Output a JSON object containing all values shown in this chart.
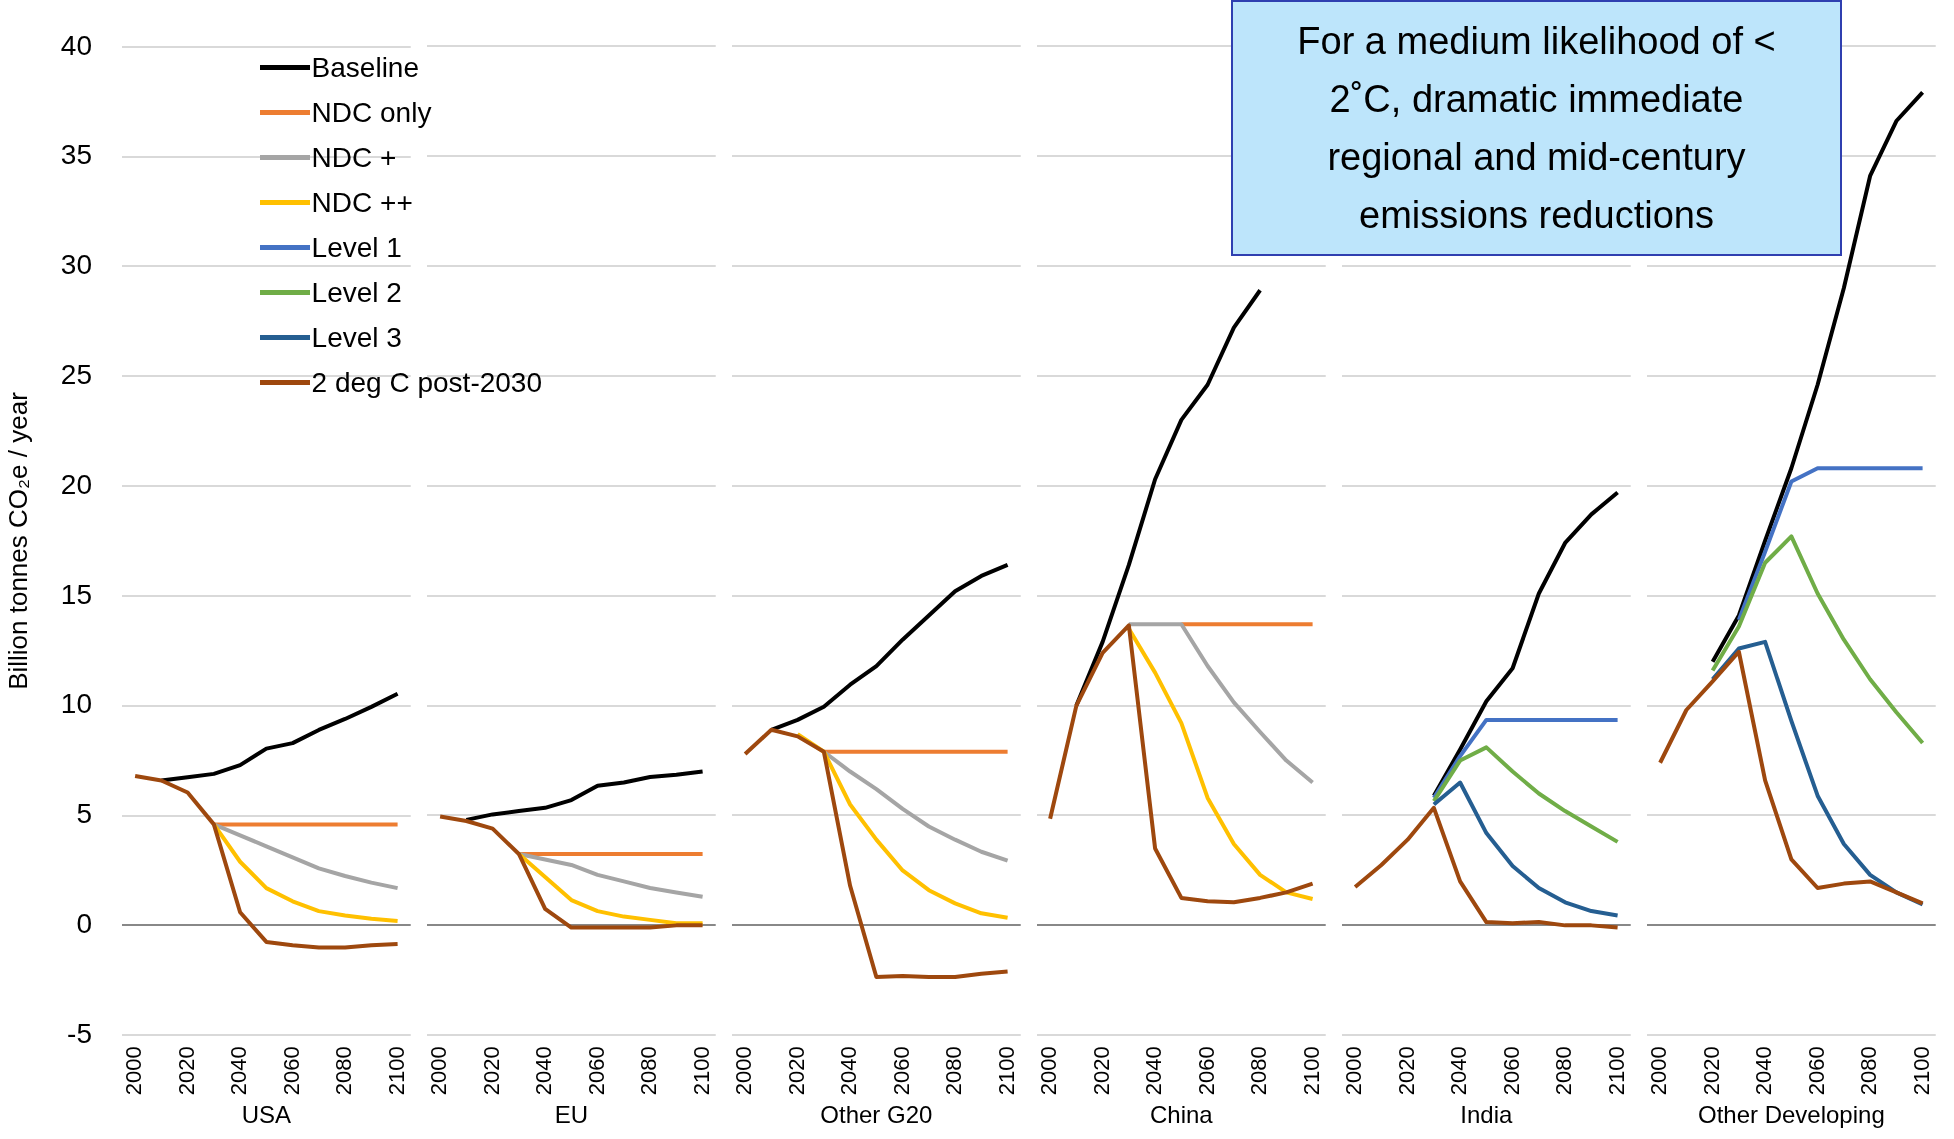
{
  "chart_data": [
    {
      "type": "line",
      "xlabel": "USA",
      "ylabel": "Billion tonnes CO₂e / year",
      "legend": "top right",
      "grid": "y",
      "ylim": [
        -5,
        40
      ],
      "yticks": [
        -5,
        0,
        5,
        10,
        15,
        20,
        25,
        30,
        35,
        40
      ],
      "categories": [
        "2000",
        null,
        "2020",
        null,
        "2040",
        null,
        "2060",
        null,
        "2080",
        null,
        "2100"
      ],
      "series": [
        {
          "name": "Baseline",
          "color": "#000000",
          "values": [
            null,
            6.6,
            6.75,
            6.9,
            7.3,
            8.05,
            8.3,
            8.9,
            9.4,
            9.95,
            10.55
          ]
        },
        {
          "name": "NDC only",
          "color": "#ed7d31",
          "values": [
            null,
            null,
            null,
            4.6,
            4.6,
            4.6,
            4.6,
            4.6,
            4.6,
            4.6,
            4.6
          ]
        },
        {
          "name": "NDC +",
          "color": "#a5a5a5",
          "values": [
            null,
            null,
            null,
            4.6,
            4.1,
            3.6,
            3.1,
            2.6,
            2.25,
            1.95,
            1.7
          ]
        },
        {
          "name": "NDC ++",
          "color": "#ffc000",
          "values": [
            null,
            null,
            null,
            4.6,
            2.9,
            1.7,
            1.1,
            0.65,
            0.45,
            0.3,
            0.2
          ]
        },
        {
          "name": "Level 1",
          "color": "#4472c4",
          "values": [
            null,
            null,
            null,
            null,
            null,
            null,
            null,
            null,
            null,
            null,
            null
          ]
        },
        {
          "name": "Level 2",
          "color": "#70ad47",
          "values": [
            null,
            null,
            null,
            null,
            null,
            null,
            null,
            null,
            null,
            null,
            null
          ]
        },
        {
          "name": "Level 3",
          "color": "#255e91",
          "values": [
            null,
            null,
            null,
            null,
            null,
            null,
            null,
            null,
            null,
            null,
            null
          ]
        },
        {
          "name": "2 deg C post-2030",
          "color": "#9e480e",
          "values": [
            6.8,
            6.6,
            6.05,
            4.6,
            0.6,
            -0.75,
            -0.9,
            -1.0,
            -1.0,
            -0.9,
            -0.85
          ]
        }
      ]
    },
    {
      "type": "line",
      "xlabel": "EU",
      "tick_labels": "x",
      "grid": "y",
      "ylim": [
        -5,
        40
      ],
      "yticks": [
        -5,
        0,
        5,
        10,
        15,
        20,
        25,
        30,
        35,
        40
      ],
      "categories": [
        "2000",
        null,
        "2020",
        null,
        "2040",
        null,
        "2060",
        null,
        "2080",
        null,
        "2100"
      ],
      "series": [
        {
          "color": "#000000",
          "values": [
            null,
            4.8,
            5.05,
            5.2,
            5.35,
            5.7,
            6.35,
            6.5,
            6.75,
            6.85,
            7.0
          ]
        },
        {
          "color": "#ed7d31",
          "values": [
            null,
            null,
            null,
            3.25,
            3.25,
            3.25,
            3.25,
            3.25,
            3.25,
            3.25,
            3.25
          ]
        },
        {
          "color": "#a5a5a5",
          "values": [
            null,
            null,
            null,
            3.25,
            3.0,
            2.75,
            2.3,
            2.0,
            1.7,
            1.5,
            1.3
          ]
        },
        {
          "color": "#ffc000",
          "values": [
            null,
            null,
            null,
            3.25,
            2.2,
            1.15,
            0.65,
            0.4,
            0.25,
            0.1,
            0.1
          ]
        },
        {
          "color": "#9e480e",
          "values": [
            4.95,
            4.75,
            4.4,
            3.25,
            0.75,
            -0.1,
            -0.1,
            -0.1,
            -0.1,
            0.0,
            0.0
          ]
        }
      ]
    },
    {
      "type": "line",
      "xlabel": "Other G20",
      "tick_labels": "x",
      "grid": "y",
      "ylim": [
        -5,
        40
      ],
      "yticks": [
        -5,
        0,
        5,
        10,
        15,
        20,
        25,
        30,
        35,
        40
      ],
      "categories": [
        "2000",
        null,
        "2020",
        null,
        "2040",
        null,
        "2060",
        null,
        "2080",
        null,
        "2100"
      ],
      "series": [
        {
          "color": "#000000",
          "values": [
            null,
            8.9,
            9.35,
            9.95,
            10.95,
            11.8,
            13.0,
            14.1,
            15.2,
            15.9,
            16.4
          ]
        },
        {
          "color": "#ed7d31",
          "values": [
            null,
            null,
            null,
            7.9,
            7.9,
            7.9,
            7.9,
            7.9,
            7.9,
            7.9,
            7.9
          ]
        },
        {
          "color": "#a5a5a5",
          "values": [
            null,
            null,
            null,
            7.9,
            7.0,
            6.2,
            5.3,
            4.5,
            3.9,
            3.35,
            2.95
          ]
        },
        {
          "color": "#ffc000",
          "values": [
            null,
            null,
            8.7,
            7.9,
            5.5,
            3.9,
            2.5,
            1.6,
            1.0,
            0.55,
            0.35
          ]
        },
        {
          "color": "#9e480e",
          "values": [
            7.8,
            8.9,
            8.6,
            7.9,
            1.8,
            -2.35,
            -2.3,
            -2.35,
            -2.35,
            -2.2,
            -2.1
          ]
        }
      ]
    },
    {
      "type": "line",
      "xlabel": "China",
      "tick_labels": "x",
      "grid": "y",
      "ylim": [
        -5,
        40
      ],
      "yticks": [
        -5,
        0,
        5,
        10,
        15,
        20,
        25,
        30,
        35,
        40
      ],
      "annotations": [
        "For a medium likelihood of < 2˚C, dramatic immediate regional and mid-century emissions reductions"
      ],
      "categories": [
        "2000",
        null,
        "2020",
        null,
        "2040",
        null,
        "2060",
        null,
        "2080",
        null,
        "2100"
      ],
      "series": [
        {
          "color": "#000000",
          "values": [
            null,
            10.0,
            12.9,
            16.4,
            20.3,
            23.0,
            24.6,
            27.2,
            28.9,
            null,
            null
          ]
        },
        {
          "color": "#ed7d31",
          "values": [
            null,
            null,
            null,
            null,
            null,
            13.7,
            13.7,
            13.7,
            13.7,
            13.7,
            13.7
          ]
        },
        {
          "color": "#a5a5a5",
          "values": [
            null,
            null,
            null,
            13.7,
            13.7,
            13.7,
            11.8,
            10.15,
            8.8,
            7.5,
            6.5
          ]
        },
        {
          "color": "#ffc000",
          "values": [
            null,
            null,
            null,
            13.5,
            11.5,
            9.2,
            5.8,
            3.7,
            2.3,
            1.5,
            1.2
          ]
        },
        {
          "color": "#9e480e",
          "values": [
            4.85,
            10.0,
            12.4,
            13.65,
            3.5,
            1.25,
            1.1,
            1.05,
            1.25,
            1.5,
            1.9
          ]
        }
      ]
    },
    {
      "type": "line",
      "xlabel": "India",
      "tick_labels": "x",
      "grid": "y",
      "ylim": [
        -5,
        40
      ],
      "yticks": [
        -5,
        0,
        5,
        10,
        15,
        20,
        25,
        30,
        35,
        40
      ],
      "categories": [
        "2000",
        null,
        "2020",
        null,
        "2040",
        null,
        "2060",
        null,
        "2080",
        null,
        "2100"
      ],
      "series": [
        {
          "color": "#000000",
          "values": [
            null,
            null,
            null,
            5.9,
            8.0,
            10.2,
            11.7,
            15.1,
            17.4,
            18.7,
            19.7
          ]
        },
        {
          "color": "#4472c4",
          "values": [
            null,
            null,
            null,
            5.8,
            7.7,
            9.35,
            9.35,
            9.35,
            9.35,
            9.35,
            9.35
          ]
        },
        {
          "color": "#70ad47",
          "values": [
            null,
            null,
            null,
            5.65,
            7.5,
            8.1,
            7.0,
            6.0,
            5.2,
            4.5,
            3.8
          ]
        },
        {
          "color": "#255e91",
          "values": [
            null,
            null,
            null,
            5.5,
            6.5,
            4.2,
            2.7,
            1.7,
            1.05,
            0.65,
            0.45
          ]
        },
        {
          "color": "#9e480e",
          "values": [
            1.75,
            2.75,
            3.9,
            5.35,
            2.0,
            0.15,
            0.1,
            0.15,
            0.0,
            0.0,
            -0.1
          ]
        }
      ]
    },
    {
      "type": "line",
      "xlabel": "Other Developing",
      "tick_labels": "x",
      "grid": "y",
      "ylim": [
        -5,
        40
      ],
      "yticks": [
        -5,
        0,
        5,
        10,
        15,
        20,
        25,
        30,
        35,
        40
      ],
      "categories": [
        "2000",
        null,
        "2020",
        null,
        "2040",
        null,
        "2060",
        null,
        "2080",
        null,
        "2100"
      ],
      "series": [
        {
          "color": "#000000",
          "values": [
            null,
            null,
            12.0,
            14.1,
            17.5,
            20.8,
            24.6,
            29.0,
            34.1,
            36.6,
            37.9
          ]
        },
        {
          "color": "#4472c4",
          "values": [
            null,
            null,
            null,
            13.9,
            17.0,
            20.2,
            20.8,
            20.8,
            20.8,
            20.8,
            20.8
          ]
        },
        {
          "color": "#70ad47",
          "values": [
            null,
            null,
            11.6,
            13.6,
            16.5,
            17.7,
            15.1,
            13.0,
            11.2,
            9.7,
            8.3
          ]
        },
        {
          "color": "#255e91",
          "values": [
            null,
            null,
            11.2,
            12.6,
            12.9,
            9.3,
            5.9,
            3.7,
            2.3,
            1.5,
            0.95
          ]
        },
        {
          "color": "#9e480e",
          "values": [
            7.4,
            9.8,
            11.1,
            12.45,
            6.6,
            3.0,
            1.7,
            1.9,
            2.0,
            1.5,
            1.0
          ]
        }
      ]
    }
  ]
}
